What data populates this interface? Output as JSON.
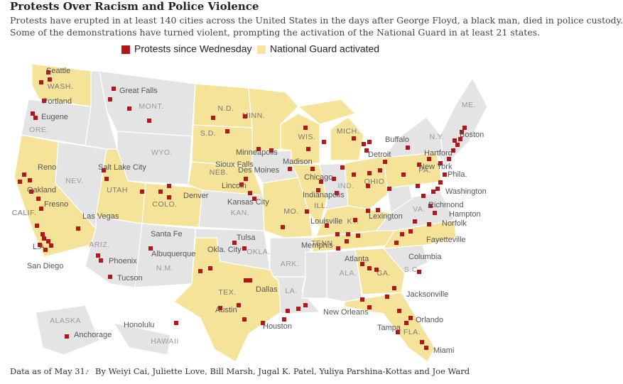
{
  "header": {
    "title": "Protests Over Racism and Police Violence",
    "subtitle": [
      "Protests have erupted in at least 140 cities across the United States in the days after George Floyd, a black man, died in police custody.",
      "Some of the demonstrations have turned violent, prompting the activation of the National Guard in at least 21 states."
    ]
  },
  "legend": [
    {
      "label": "Protests since Wednesday",
      "color": "#b5141b"
    },
    {
      "label": "National Guard activated",
      "color": "#f6e39a"
    }
  ],
  "map": {
    "state_labels": [
      "WASH.",
      "MONT.",
      "ORE.",
      "WYO.",
      "N.D.",
      "MINN.",
      "S.D.",
      "WIS.",
      "MICH.",
      "NEB.",
      "NEV.",
      "UTAH",
      "COLO.",
      "KAN.",
      "MO.",
      "ILL.",
      "IND.",
      "OHIO",
      "PA.",
      "N.Y.",
      "ME.",
      "KY.",
      "VA.",
      "TENN.",
      "S.C.",
      "GA.",
      "ALA.",
      "ARK.",
      "OKLA.",
      "TEX.",
      "LA.",
      "FLA.",
      "ARIZ.",
      "N.M.",
      "CALIF.",
      "ALASKA",
      "HAWAII"
    ],
    "city_labels": [
      "Seattle",
      "Portland",
      "Eugene",
      "Great Falls",
      "Reno",
      "Oakland",
      "Fresno",
      "Las Vegas",
      "L.A.",
      "San Diego",
      "Salt Lake City",
      "Phoenix",
      "Tucson",
      "Santa Fe",
      "Albuquerque",
      "Denver",
      "Minneapolis",
      "Sioux Falls",
      "Des Moines",
      "Lincoln",
      "Kansas City",
      "Tulsa",
      "Okla. City",
      "Dallas",
      "Austin",
      "Houston",
      "Memphis",
      "New Orleans",
      "Madison",
      "Chicago",
      "Indianapolis",
      "Louisville",
      "Lexington",
      "Atlanta",
      "Detroit",
      "Buffalo",
      "New York",
      "Hartford",
      "Boston",
      "Phila.",
      "Washington",
      "Richmond",
      "Hampton",
      "Norfolk",
      "Fayetteville",
      "Columbia",
      "Jacksonville",
      "Tampa",
      "Orlando",
      "Miami",
      "Anchorage",
      "Honolulu"
    ]
  },
  "footer": {
    "note": "Data as of May 31.",
    "byline": "By Weiyi Cai, Juliette Love, Bill Marsh, Jugal K. Patel, Yuliya Parshina-Kottas and Joe Ward"
  }
}
